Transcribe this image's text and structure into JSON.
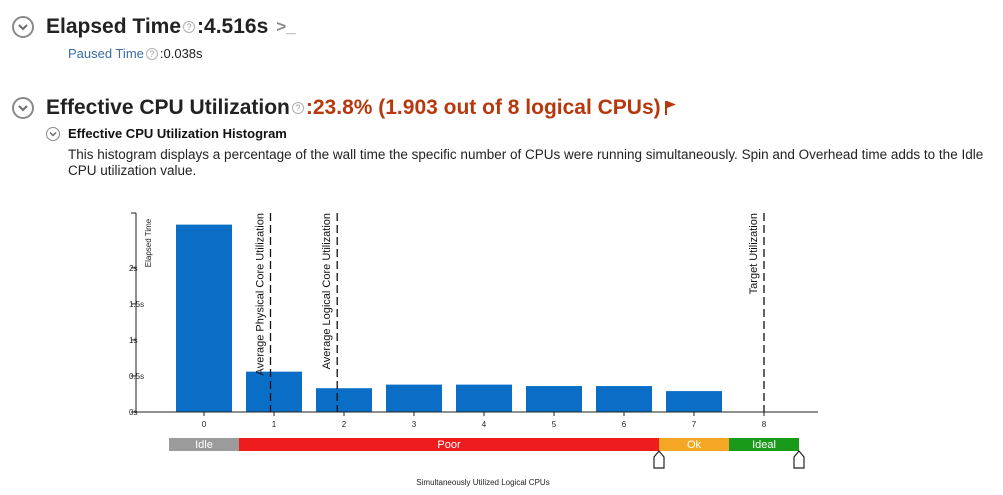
{
  "elapsed": {
    "title": "Elapsed Time",
    "sep": ": ",
    "value": "4.516s",
    "paused_label": "Paused Time",
    "paused_sep": ": ",
    "paused_value": "0.038s",
    "help_glyph": "?",
    "cli_glyph": ">_"
  },
  "effective": {
    "title": "Effective CPU Utilization",
    "sep": ": ",
    "value": "23.8% (1.903 out of 8 logical CPUs)",
    "flag_color": "#b8380d"
  },
  "histogram": {
    "title": "Effective CPU Utilization Histogram",
    "description": "This histogram displays a percentage of the wall time the specific number of CPUs were running simultaneously. Spin and Overhead time adds to the Idle CPU utilization value."
  },
  "chart_data": {
    "type": "bar",
    "xlabel": "Simultaneously Utilized Logical CPUs",
    "ylabel": "Elapsed Time",
    "categories": [
      "0",
      "1",
      "2",
      "3",
      "4",
      "5",
      "6",
      "7",
      "8"
    ],
    "values": [
      2.6,
      0.56,
      0.33,
      0.38,
      0.38,
      0.36,
      0.36,
      0.29,
      0
    ],
    "ylim": [
      0,
      2.9
    ],
    "yticks": [
      {
        "value": 0,
        "label": "0s"
      },
      {
        "value": 0.5,
        "label": "0.5s"
      },
      {
        "value": 1,
        "label": "1s"
      },
      {
        "value": 1.5,
        "label": "1.5s"
      },
      {
        "value": 2,
        "label": "2s"
      }
    ],
    "bar_color": "#0a6ec7",
    "reference_lines": [
      {
        "x": 0.95,
        "label": "Average Physical Core Utilization"
      },
      {
        "x": 1.903,
        "label": "Average Logical Core Utilization"
      },
      {
        "x": 8,
        "label": "Target Utilization"
      }
    ],
    "ranges": [
      {
        "label": "Idle",
        "from": -0.5,
        "to": 0.5,
        "color": "#9b9b9b"
      },
      {
        "label": "Poor",
        "from": 0.5,
        "to": 6.5,
        "color": "#ee1c1c"
      },
      {
        "label": "Ok",
        "from": 6.5,
        "to": 7.5,
        "color": "#f5a623"
      },
      {
        "label": "Ideal",
        "from": 7.5,
        "to": 8.5,
        "color": "#1a9a1a"
      }
    ],
    "range_handles": [
      6.5,
      8.5
    ]
  }
}
